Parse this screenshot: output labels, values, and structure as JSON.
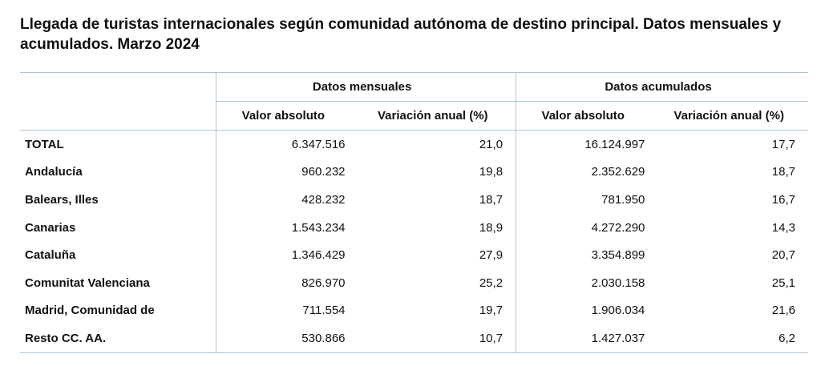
{
  "title": "Llegada de turistas internacionales según comunidad autónoma de destino principal. Datos mensuales y acumulados. Marzo 2024",
  "groups": {
    "monthly": "Datos mensuales",
    "cumulative": "Datos acumulados"
  },
  "columns": {
    "abs": "Valor absoluto",
    "var": "Variación anual (%)"
  },
  "rows": [
    {
      "label": "TOTAL",
      "m_abs": "6.347.516",
      "m_var": "21,0",
      "c_abs": "16.124.997",
      "c_var": "17,7"
    },
    {
      "label": "Andalucía",
      "m_abs": "960.232",
      "m_var": "19,8",
      "c_abs": "2.352.629",
      "c_var": "18,7"
    },
    {
      "label": "Balears, Illes",
      "m_abs": "428.232",
      "m_var": "18,7",
      "c_abs": "781.950",
      "c_var": "16,7"
    },
    {
      "label": "Canarias",
      "m_abs": "1.543.234",
      "m_var": "18,9",
      "c_abs": "4.272.290",
      "c_var": "14,3"
    },
    {
      "label": "Cataluña",
      "m_abs": "1.346.429",
      "m_var": "27,9",
      "c_abs": "3.354.899",
      "c_var": "20,7"
    },
    {
      "label": "Comunitat Valenciana",
      "m_abs": "826.970",
      "m_var": "25,2",
      "c_abs": "2.030.158",
      "c_var": "25,1"
    },
    {
      "label": "Madrid, Comunidad de",
      "m_abs": "711.554",
      "m_var": "19,7",
      "c_abs": "1.906.034",
      "c_var": "21,6"
    },
    {
      "label": "Resto CC. AA.",
      "m_abs": "530.866",
      "m_var": "10,7",
      "c_abs": "1.427.037",
      "c_var": "6,2"
    }
  ]
}
